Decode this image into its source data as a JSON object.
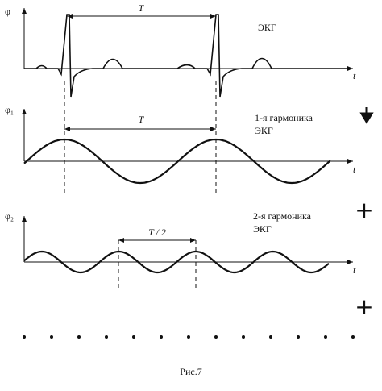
{
  "panels": [
    {
      "y_label": "φ",
      "period_label": "T",
      "caption": [
        "ЭКГ"
      ],
      "x_label": "t"
    },
    {
      "y_label": "φ₁",
      "period_label": "T",
      "caption": [
        "1-я гармоника",
        "ЭКГ"
      ],
      "x_label": "t"
    },
    {
      "y_label": "φ₂",
      "period_label": "T / 2",
      "caption": [
        "2-я гармоника",
        "ЭКГ"
      ],
      "x_label": "t"
    }
  ],
  "signs": [
    "+",
    "+"
  ],
  "figure_caption": "Рис.7"
}
